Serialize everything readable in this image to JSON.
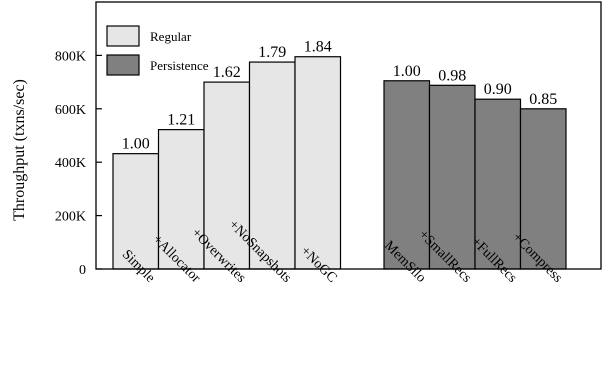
{
  "chart_data": {
    "type": "bar",
    "ylabel": "Throughput (txns/sec)",
    "ylim": [
      0,
      1000000
    ],
    "yticks": [
      0,
      200000,
      400000,
      600000,
      800000
    ],
    "ytick_labels": [
      "0",
      "200K",
      "400K",
      "600K",
      "800K"
    ],
    "grid": false,
    "legend_position": "top-left",
    "groups": [
      {
        "name": "Regular",
        "color": "#e6e6e6",
        "categories": [
          "Simple",
          "+Allocator",
          "+Overwrites",
          "+NoSnapshots",
          "+NoGC"
        ],
        "values": [
          432000,
          522000,
          700000,
          775000,
          795000
        ],
        "labels": [
          "1.00",
          "1.21",
          "1.62",
          "1.79",
          "1.84"
        ]
      },
      {
        "name": "Persistence",
        "color": "#808080",
        "categories": [
          "MemSilo",
          "+SmallRecs",
          "+FullRecs",
          "+Compress"
        ],
        "values": [
          705000,
          688000,
          636000,
          600000
        ],
        "labels": [
          "1.00",
          "0.98",
          "0.90",
          "0.85"
        ]
      }
    ]
  }
}
